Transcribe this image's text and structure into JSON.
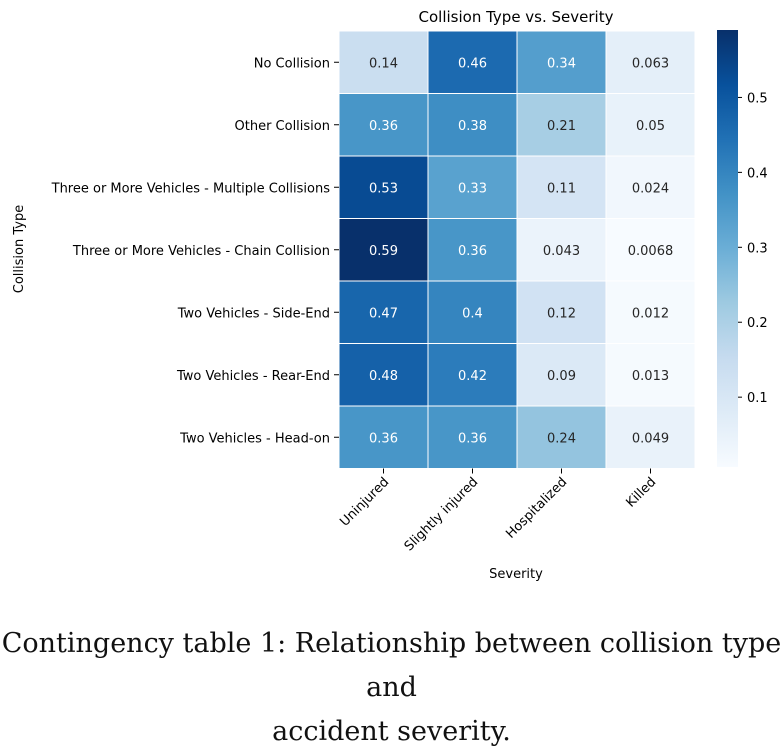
{
  "chart_data": {
    "type": "heatmap",
    "title": "Collision Type vs. Severity",
    "xlabel": "Severity",
    "ylabel": "Collision Type",
    "x_categories": [
      "Uninjured",
      "Slightly injured",
      "Hospitalized",
      "Killed"
    ],
    "y_categories": [
      "No Collision",
      "Other Collision",
      "Three or More Vehicles - Multiple Collisions",
      "Three or More Vehicles - Chain Collision",
      "Two Vehicles - Side-End",
      "Two Vehicles - Rear-End",
      "Two Vehicles - Head-on"
    ],
    "value_labels": [
      [
        "0.14",
        "0.46",
        "0.34",
        "0.063"
      ],
      [
        "0.36",
        "0.38",
        "0.21",
        "0.05"
      ],
      [
        "0.53",
        "0.33",
        "0.11",
        "0.024"
      ],
      [
        "0.59",
        "0.36",
        "0.043",
        "0.0068"
      ],
      [
        "0.47",
        "0.4",
        "0.12",
        "0.012"
      ],
      [
        "0.48",
        "0.42",
        "0.09",
        "0.013"
      ],
      [
        "0.36",
        "0.36",
        "0.24",
        "0.049"
      ]
    ],
    "colormap": "Blues",
    "vmin": 0.0068,
    "vmax": 0.59,
    "colorbar_ticks": [
      "0.1",
      "0.2",
      "0.3",
      "0.4",
      "0.5"
    ]
  },
  "caption_lines": [
    "Contingency table 1: Relationship between collision type and",
    "accident severity."
  ]
}
